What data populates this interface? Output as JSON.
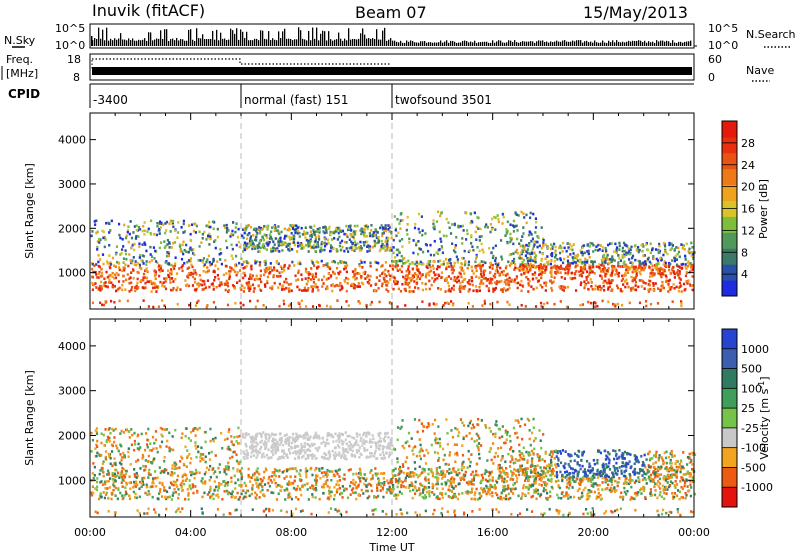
{
  "header": {
    "station": "Inuvik (fitACF)",
    "beam": "Beam 07",
    "date": "15/May/2013"
  },
  "strips": {
    "nsky_label": "N.Sky",
    "freq_label_1": "Freq.",
    "freq_label_2": "[MHz]",
    "cpid_label": "CPID",
    "nsearch_label": "N.Search",
    "nave_label": "Nave",
    "noise_ticks_left": [
      "10^5",
      "10^0"
    ],
    "noise_ticks_right": [
      "10^5",
      "10^0"
    ],
    "freq_ticks": [
      "18",
      "8"
    ],
    "nave_ticks": [
      "60",
      "0"
    ]
  },
  "cpid": [
    {
      "label": "-3400",
      "start": "00:00",
      "end": "06:00"
    },
    {
      "label": "normal (fast) 151",
      "start": "06:00",
      "end": "12:00"
    },
    {
      "label": "twofsound 3501",
      "start": "12:00",
      "end": "24:00"
    }
  ],
  "colors": {
    "power": [
      "#1f2be0",
      "#2a4fa6",
      "#3b7a68",
      "#4f9a5a",
      "#7dbf3a",
      "#d9c32a",
      "#f0a21e",
      "#ee7a17",
      "#e95313",
      "#e8300f",
      "#e31a0c"
    ],
    "velocity": [
      "#e3130e",
      "#ec5a13",
      "#ef8718",
      "#f2a31f",
      "#cdcdcd",
      "#c8c8c8",
      "#76c34a",
      "#3e9e5a",
      "#2f7a62",
      "#3a5fb0",
      "#2544d0"
    ]
  },
  "chart_data": [
    {
      "type": "heatmap",
      "name": "power",
      "xlabel": "",
      "ylabel": "Slant Range [km]",
      "x_ticks": [
        "00:00",
        "04:00",
        "08:00",
        "12:00",
        "16:00",
        "20:00",
        "00:00"
      ],
      "x_range_hours": [
        0,
        24
      ],
      "y_ticks": [
        1000,
        2000,
        3000,
        4000
      ],
      "ylim": [
        180,
        4600
      ],
      "colorbar": {
        "label": "Power [dB]",
        "ticks": [
          4,
          8,
          12,
          16,
          20,
          24,
          28
        ],
        "range": [
          0,
          32
        ]
      },
      "dashed_lines_hours": [
        6,
        12
      ]
    },
    {
      "type": "heatmap",
      "name": "velocity",
      "xlabel": "Time UT",
      "ylabel": "Slant Range [km]",
      "x_ticks": [
        "00:00",
        "04:00",
        "08:00",
        "12:00",
        "16:00",
        "20:00",
        "00:00"
      ],
      "x_range_hours": [
        0,
        24
      ],
      "y_ticks": [
        1000,
        2000,
        3000,
        4000
      ],
      "ylim": [
        180,
        4600
      ],
      "colorbar": {
        "label": "Velocity [m s",
        "label_sup": "-1",
        "label_end": "]",
        "ticks": [
          "1000",
          "500",
          "100",
          "25",
          "-25",
          "-100",
          "-500",
          "-1000"
        ]
      },
      "dashed_lines_hours": [
        6,
        12
      ]
    }
  ]
}
